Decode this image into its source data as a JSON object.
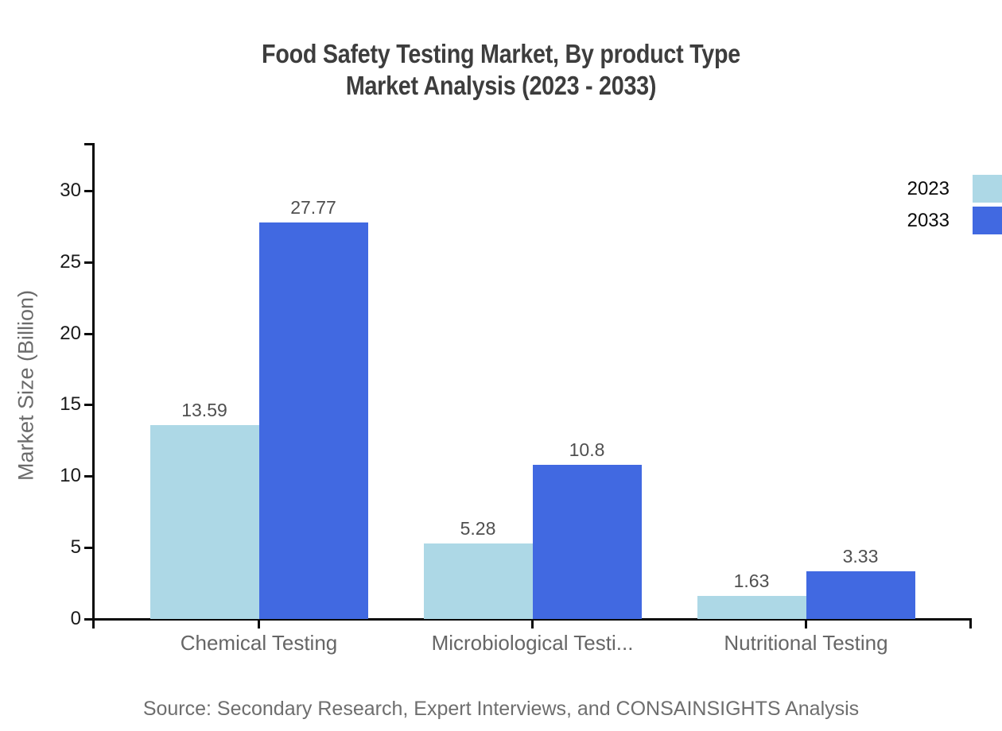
{
  "chart_data": {
    "type": "bar",
    "title_lines": [
      "Food Safety Testing Market, By product Type",
      "Market Analysis (2023 - 2033)"
    ],
    "categories": [
      "Chemical Testing",
      "Microbiological Testi...",
      "Nutritional Testing"
    ],
    "series": [
      {
        "name": "2023",
        "color": "#ADD8E6",
        "values": [
          13.59,
          5.28,
          1.63
        ]
      },
      {
        "name": "2033",
        "color": "#4169E1",
        "values": [
          27.77,
          10.8,
          3.33
        ]
      }
    ],
    "xlabel": "",
    "ylabel": "Market Size (Billion)",
    "yticks": [
      0,
      5,
      10,
      15,
      20,
      25,
      30
    ],
    "ylim": [
      0,
      33.3
    ],
    "grid": false,
    "legend_position": "top-right",
    "value_labels_shown": true,
    "source_note": "Source: Secondary Research, Expert Interviews, and CONSAINSIGHTS Analysis"
  }
}
